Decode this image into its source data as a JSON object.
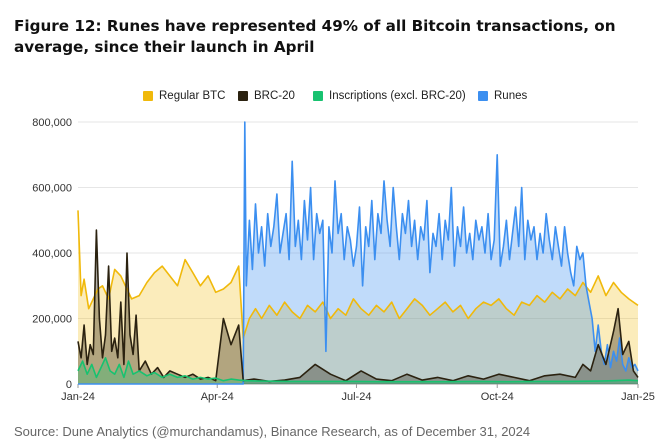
{
  "figure": {
    "title": "Figure 12: Runes have represented 49% of all Bitcoin transactions, on average, since their launch in April",
    "source": "Source: Dune Analytics (@murchandamus), Binance Research, as of December 31, 2024"
  },
  "chart_data": {
    "type": "area",
    "title": "Figure 12: Runes have represented 49% of all Bitcoin transactions, on average, since their launch in April",
    "xlabel": "",
    "ylabel": "",
    "ylim": [
      0,
      800000
    ],
    "yticks": [
      0,
      200000,
      400000,
      600000,
      800000
    ],
    "ytick_labels": [
      "0",
      "200,000",
      "400,000",
      "600,000",
      "800,000"
    ],
    "xticks": [
      {
        "label": "Jan-24",
        "day": 0
      },
      {
        "label": "Apr-24",
        "day": 91
      },
      {
        "label": "Jul-24",
        "day": 182
      },
      {
        "label": "Oct-24",
        "day": 274
      },
      {
        "label": "Jan-25",
        "day": 366
      }
    ],
    "x_unit": "days since 2024-01-01",
    "legend_position": "top",
    "grid": true,
    "colors": {
      "regular_btc": "#f0b90b",
      "brc20": "#2b2210",
      "inscriptions": "#18c270",
      "runes": "#3c8ff0",
      "grid": "#e6e6e6",
      "axis": "#9a9a9a"
    },
    "series": [
      {
        "name": "Regular BTC",
        "key": "regular_btc",
        "x": [
          0,
          2,
          4,
          7,
          10,
          13,
          16,
          20,
          24,
          28,
          31,
          35,
          40,
          45,
          50,
          55,
          60,
          65,
          70,
          75,
          80,
          85,
          90,
          95,
          100,
          105,
          108,
          112,
          116,
          120,
          125,
          130,
          135,
          140,
          145,
          150,
          155,
          160,
          165,
          170,
          175,
          180,
          185,
          190,
          195,
          200,
          205,
          210,
          215,
          220,
          225,
          230,
          235,
          240,
          245,
          250,
          255,
          260,
          265,
          270,
          275,
          280,
          285,
          290,
          295,
          300,
          305,
          310,
          315,
          320,
          325,
          330,
          335,
          340,
          345,
          350,
          355,
          360,
          363,
          366
        ],
        "values": [
          530000,
          270000,
          320000,
          230000,
          260000,
          290000,
          300000,
          260000,
          350000,
          330000,
          300000,
          260000,
          270000,
          310000,
          340000,
          360000,
          330000,
          300000,
          380000,
          340000,
          300000,
          330000,
          280000,
          290000,
          310000,
          360000,
          140000,
          200000,
          230000,
          200000,
          240000,
          210000,
          250000,
          220000,
          200000,
          240000,
          220000,
          250000,
          200000,
          230000,
          210000,
          260000,
          230000,
          210000,
          240000,
          220000,
          250000,
          200000,
          230000,
          260000,
          240000,
          210000,
          230000,
          250000,
          220000,
          240000,
          200000,
          230000,
          250000,
          240000,
          260000,
          230000,
          210000,
          250000,
          240000,
          270000,
          250000,
          280000,
          260000,
          290000,
          270000,
          310000,
          280000,
          330000,
          270000,
          310000,
          280000,
          260000,
          250000,
          240000
        ]
      },
      {
        "name": "BRC-20",
        "key": "brc20",
        "x": [
          0,
          2,
          4,
          6,
          8,
          10,
          12,
          14,
          16,
          18,
          20,
          22,
          24,
          26,
          28,
          30,
          32,
          34,
          36,
          38,
          40,
          44,
          48,
          52,
          56,
          60,
          65,
          70,
          75,
          80,
          85,
          90,
          95,
          100,
          105,
          108,
          115,
          125,
          135,
          145,
          155,
          165,
          175,
          185,
          195,
          205,
          215,
          225,
          235,
          245,
          255,
          265,
          275,
          285,
          295,
          305,
          315,
          325,
          330,
          335,
          340,
          345,
          350,
          353,
          356,
          360,
          363,
          366
        ],
        "values": [
          130000,
          80000,
          180000,
          60000,
          120000,
          90000,
          470000,
          200000,
          80000,
          150000,
          360000,
          100000,
          140000,
          80000,
          250000,
          60000,
          400000,
          150000,
          90000,
          210000,
          40000,
          70000,
          30000,
          50000,
          20000,
          40000,
          30000,
          20000,
          30000,
          15000,
          20000,
          10000,
          200000,
          120000,
          180000,
          10000,
          15000,
          8000,
          12000,
          20000,
          60000,
          30000,
          10000,
          40000,
          15000,
          10000,
          30000,
          12000,
          20000,
          10000,
          25000,
          15000,
          30000,
          20000,
          10000,
          25000,
          30000,
          20000,
          60000,
          40000,
          120000,
          60000,
          160000,
          230000,
          90000,
          130000,
          40000,
          20000
        ]
      },
      {
        "name": "Inscriptions (excl. BRC-20)",
        "key": "inscriptions",
        "x": [
          0,
          3,
          6,
          9,
          12,
          15,
          18,
          21,
          24,
          27,
          30,
          33,
          36,
          40,
          45,
          50,
          55,
          60,
          65,
          70,
          75,
          80,
          85,
          90,
          95,
          100,
          105,
          110,
          120,
          140,
          160,
          180,
          200,
          220,
          240,
          260,
          280,
          300,
          320,
          340,
          350,
          360,
          366
        ],
        "values": [
          40000,
          70000,
          30000,
          60000,
          20000,
          50000,
          80000,
          40000,
          30000,
          60000,
          20000,
          70000,
          30000,
          40000,
          25000,
          35000,
          20000,
          30000,
          20000,
          25000,
          15000,
          20000,
          15000,
          18000,
          10000,
          15000,
          12000,
          10000,
          9000,
          8000,
          8000,
          8000,
          7000,
          7000,
          7000,
          8000,
          7000,
          8000,
          8000,
          9000,
          10000,
          12000,
          10000
        ]
      },
      {
        "name": "Runes",
        "key": "runes",
        "x": [
          0,
          108,
          109,
          110,
          112,
          114,
          116,
          118,
          120,
          122,
          124,
          126,
          128,
          130,
          132,
          134,
          136,
          138,
          140,
          142,
          144,
          146,
          148,
          150,
          152,
          154,
          156,
          158,
          160,
          162,
          164,
          166,
          168,
          170,
          172,
          174,
          176,
          178,
          180,
          182,
          184,
          186,
          188,
          190,
          192,
          194,
          196,
          198,
          200,
          202,
          204,
          206,
          208,
          210,
          212,
          214,
          216,
          218,
          220,
          222,
          224,
          226,
          228,
          230,
          232,
          234,
          236,
          238,
          240,
          242,
          244,
          246,
          248,
          250,
          252,
          254,
          256,
          258,
          260,
          262,
          264,
          266,
          268,
          270,
          272,
          274,
          276,
          278,
          280,
          282,
          284,
          286,
          288,
          290,
          292,
          294,
          296,
          298,
          300,
          302,
          304,
          306,
          308,
          310,
          312,
          314,
          316,
          318,
          320,
          322,
          324,
          326,
          328,
          330,
          332,
          334,
          336,
          338,
          340,
          342,
          344,
          346,
          348,
          350,
          352,
          354,
          356,
          358,
          360,
          362,
          364,
          366
        ],
        "values": [
          0,
          0,
          800000,
          300000,
          500000,
          350000,
          550000,
          400000,
          480000,
          360000,
          520000,
          420000,
          480000,
          580000,
          400000,
          460000,
          520000,
          380000,
          680000,
          420000,
          500000,
          380000,
          560000,
          440000,
          600000,
          380000,
          520000,
          460000,
          500000,
          100000,
          480000,
          400000,
          620000,
          460000,
          520000,
          380000,
          480000,
          440000,
          360000,
          420000,
          540000,
          300000,
          480000,
          420000,
          560000,
          380000,
          520000,
          460000,
          620000,
          500000,
          420000,
          600000,
          480000,
          380000,
          520000,
          460000,
          560000,
          420000,
          500000,
          380000,
          480000,
          440000,
          560000,
          340000,
          460000,
          420000,
          520000,
          380000,
          500000,
          440000,
          600000,
          360000,
          480000,
          420000,
          540000,
          400000,
          460000,
          380000,
          500000,
          440000,
          480000,
          400000,
          520000,
          380000,
          440000,
          700000,
          360000,
          420000,
          500000,
          380000,
          460000,
          540000,
          420000,
          600000,
          380000,
          500000,
          440000,
          480000,
          380000,
          460000,
          400000,
          520000,
          440000,
          380000,
          480000,
          420000,
          360000,
          480000,
          400000,
          340000,
          300000,
          420000,
          380000,
          400000,
          300000,
          250000,
          200000,
          100000,
          180000,
          100000,
          60000,
          120000,
          50000,
          100000,
          70000,
          140000,
          60000,
          40000,
          80000,
          50000,
          60000,
          40000
        ]
      }
    ]
  }
}
